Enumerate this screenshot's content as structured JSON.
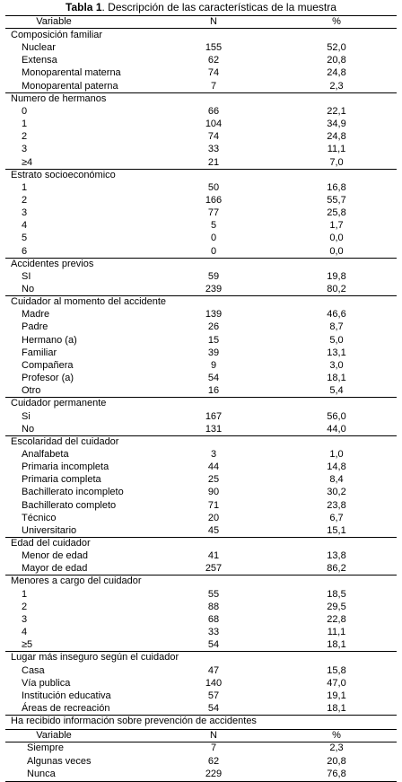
{
  "title": {
    "label": "Tabla 1",
    "text": ". Descripción de las características de la muestra"
  },
  "table": {
    "header": [
      "Variable",
      "N",
      "%"
    ],
    "sections": [
      {
        "label": "Composición familiar",
        "rows": [
          [
            "Nuclear",
            "155",
            "52,0"
          ],
          [
            "Extensa",
            "62",
            "20,8"
          ],
          [
            "Monoparental materna",
            "74",
            "24,8"
          ],
          [
            "Monoparental paterna",
            "7",
            "2,3"
          ]
        ]
      },
      {
        "label": "Numero de hermanos",
        "rows": [
          [
            "0",
            "66",
            "22,1"
          ],
          [
            "1",
            "104",
            "34,9"
          ],
          [
            "2",
            "74",
            "24,8"
          ],
          [
            "3",
            "33",
            "11,1"
          ],
          [
            "≥4",
            "21",
            "7,0"
          ]
        ]
      },
      {
        "label": "Estrato socioeconómico",
        "rows": [
          [
            "1",
            "50",
            "16,8"
          ],
          [
            "2",
            "166",
            "55,7"
          ],
          [
            "3",
            "77",
            "25,8"
          ],
          [
            "4",
            "5",
            "1,7"
          ],
          [
            "5",
            "0",
            "0,0"
          ],
          [
            "6",
            "0",
            "0,0"
          ]
        ]
      },
      {
        "label": "Accidentes previos",
        "rows": [
          [
            "SI",
            "59",
            "19,8"
          ],
          [
            "No",
            "239",
            "80,2"
          ]
        ]
      },
      {
        "label": "Cuidador al momento del accidente",
        "rows": [
          [
            "Madre",
            "139",
            "46,6"
          ],
          [
            "Padre",
            "26",
            "8,7"
          ],
          [
            "Hermano (a)",
            "15",
            "5,0"
          ],
          [
            "Familiar",
            "39",
            "13,1"
          ],
          [
            "Compañera",
            "9",
            "3,0"
          ],
          [
            "Profesor (a)",
            "54",
            "18,1"
          ],
          [
            "Otro",
            "16",
            "5,4"
          ]
        ]
      },
      {
        "label": "Cuidador permanente",
        "rows": [
          [
            "Si",
            "167",
            "56,0"
          ],
          [
            "No",
            "131",
            "44,0"
          ]
        ]
      },
      {
        "label": "Escolaridad del cuidador",
        "rows": [
          [
            "Analfabeta",
            "3",
            "1,0"
          ],
          [
            "Primaria incompleta",
            "44",
            "14,8"
          ],
          [
            "Primaria completa",
            "25",
            "8,4"
          ],
          [
            "Bachillerato incompleto",
            "90",
            "30,2"
          ],
          [
            "Bachillerato completo",
            "71",
            "23,8"
          ],
          [
            "Técnico",
            "20",
            "6,7"
          ],
          [
            "Universitario",
            "45",
            "15,1"
          ]
        ]
      },
      {
        "label": "Edad del cuidador",
        "rows": [
          [
            "Menor de edad",
            "41",
            "13,8"
          ],
          [
            "Mayor de edad",
            "257",
            "86,2"
          ]
        ]
      },
      {
        "label": "Menores a cargo del cuidador",
        "rows": [
          [
            "1",
            "55",
            "18,5"
          ],
          [
            "2",
            "88",
            "29,5"
          ],
          [
            "3",
            "68",
            "22,8"
          ],
          [
            "4",
            "33",
            "11,1"
          ],
          [
            "≥5",
            "54",
            "18,1"
          ]
        ]
      },
      {
        "label": "Lugar más inseguro según el cuidador",
        "rows": [
          [
            "Casa",
            "47",
            "15,8"
          ],
          [
            "Vía publica",
            "140",
            "47,0"
          ],
          [
            "Institución educativa",
            "57",
            "19,1"
          ],
          [
            "Áreas de recreación",
            "54",
            "18,1"
          ]
        ]
      }
    ]
  },
  "table2": {
    "caption": "Ha recibido información sobre prevención de accidentes",
    "header": [
      "Variable",
      "N",
      "%"
    ],
    "rows": [
      [
        "Siempre",
        "7",
        "2,3"
      ],
      [
        "Algunas veces",
        "62",
        "20,8"
      ],
      [
        "Nunca",
        "229",
        "76,8"
      ]
    ]
  }
}
